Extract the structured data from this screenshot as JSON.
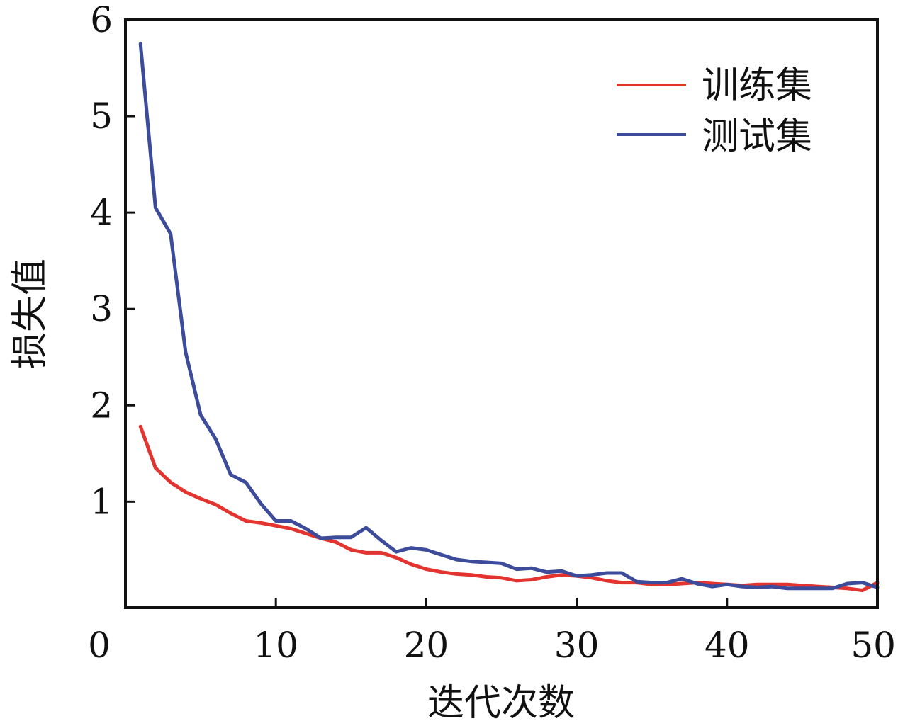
{
  "chart_data": {
    "type": "line",
    "title": "",
    "xlabel": "迭代次数",
    "ylabel": "损失值",
    "xlim": [
      0,
      50
    ],
    "ylim": [
      -0.1,
      6
    ],
    "xticks": [
      "0",
      "10",
      "20",
      "30",
      "40",
      "50"
    ],
    "yticks": [
      "1",
      "2",
      "3",
      "4",
      "5",
      "6"
    ],
    "grid": false,
    "legend_position": "top-right",
    "series": [
      {
        "name": "训练集",
        "color": "#e3342f",
        "x": [
          1,
          2,
          3,
          4,
          5,
          6,
          7,
          8,
          9,
          10,
          11,
          12,
          13,
          14,
          15,
          16,
          17,
          18,
          19,
          20,
          21,
          22,
          23,
          24,
          25,
          26,
          27,
          28,
          29,
          30,
          31,
          32,
          33,
          34,
          35,
          36,
          37,
          38,
          39,
          40,
          41,
          42,
          43,
          44,
          45,
          46,
          47,
          48,
          49,
          50
        ],
        "y": [
          1.78,
          1.35,
          1.2,
          1.1,
          1.03,
          0.97,
          0.88,
          0.8,
          0.78,
          0.75,
          0.72,
          0.67,
          0.62,
          0.58,
          0.5,
          0.47,
          0.47,
          0.42,
          0.35,
          0.3,
          0.27,
          0.25,
          0.24,
          0.22,
          0.21,
          0.18,
          0.19,
          0.22,
          0.24,
          0.23,
          0.21,
          0.18,
          0.16,
          0.16,
          0.14,
          0.14,
          0.15,
          0.16,
          0.15,
          0.14,
          0.13,
          0.14,
          0.14,
          0.14,
          0.13,
          0.12,
          0.11,
          0.1,
          0.08,
          0.16
        ]
      },
      {
        "name": "测试集",
        "color": "#3c4b9a",
        "x": [
          1,
          2,
          3,
          4,
          5,
          6,
          7,
          8,
          9,
          10,
          11,
          12,
          13,
          14,
          15,
          16,
          17,
          18,
          19,
          20,
          21,
          22,
          23,
          24,
          25,
          26,
          27,
          28,
          29,
          30,
          31,
          32,
          33,
          34,
          35,
          36,
          37,
          38,
          39,
          40,
          41,
          42,
          43,
          44,
          45,
          46,
          47,
          48,
          49,
          50
        ],
        "y": [
          5.75,
          4.05,
          3.78,
          2.55,
          1.9,
          1.65,
          1.28,
          1.2,
          0.98,
          0.8,
          0.8,
          0.72,
          0.62,
          0.63,
          0.63,
          0.73,
          0.6,
          0.48,
          0.52,
          0.5,
          0.45,
          0.4,
          0.38,
          0.37,
          0.36,
          0.3,
          0.31,
          0.27,
          0.28,
          0.23,
          0.24,
          0.26,
          0.26,
          0.17,
          0.16,
          0.16,
          0.2,
          0.15,
          0.12,
          0.14,
          0.12,
          0.11,
          0.12,
          0.1,
          0.1,
          0.1,
          0.1,
          0.15,
          0.16,
          0.11
        ]
      }
    ]
  }
}
